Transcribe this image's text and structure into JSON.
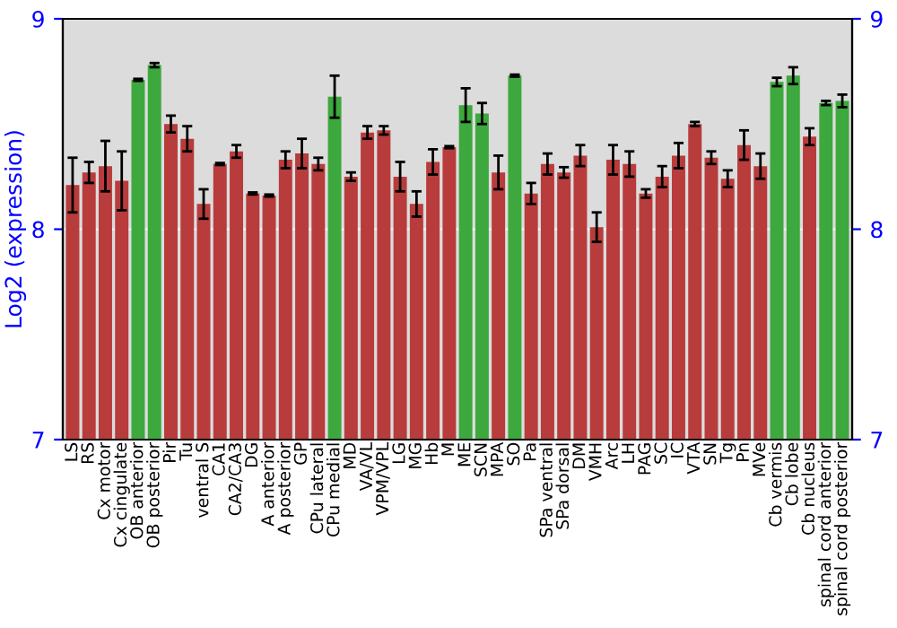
{
  "chart_data": {
    "type": "bar",
    "ylabel": "Log2 (expression)",
    "categories": [
      "LS",
      "RS",
      "Cx motor",
      "Cx cingulate",
      "OB anterior",
      "OB posterior",
      "Pir",
      "Tu",
      "ventral S",
      "CA1",
      "CA2/CA3",
      "DG",
      "A anterior",
      "A posterior",
      "GP",
      "CPu lateral",
      "CPu medial",
      "MD",
      "VA/VL",
      "VPM/VPL",
      "LG",
      "MG",
      "Hb",
      "M",
      "ME",
      "SCN",
      "MPA",
      "SO",
      "Pa",
      "SPa ventral",
      "SPa dorsal",
      "DM",
      "VMH",
      "Arc",
      "LH",
      "PAG",
      "SC",
      "IC",
      "VTA",
      "SN",
      "Tg",
      "Pn",
      "MVe",
      "Cb vermis",
      "Cb lobe",
      "Cb nucleus",
      "spinal cord anterior",
      "spinal cord posterior"
    ],
    "values": [
      8.21,
      8.27,
      8.3,
      8.23,
      8.71,
      8.78,
      8.5,
      8.43,
      8.12,
      8.31,
      8.37,
      8.17,
      8.16,
      8.33,
      8.36,
      8.31,
      8.63,
      8.25,
      8.46,
      8.47,
      8.25,
      8.12,
      8.32,
      8.39,
      8.59,
      8.55,
      8.27,
      8.73,
      8.17,
      8.31,
      8.27,
      8.35,
      8.01,
      8.33,
      8.31,
      8.17,
      8.25,
      8.35,
      8.5,
      8.34,
      8.24,
      8.4,
      8.3,
      8.7,
      8.73,
      8.44,
      8.6,
      8.61
    ],
    "errors": [
      0.13,
      0.05,
      0.12,
      0.14,
      0.005,
      0.01,
      0.04,
      0.06,
      0.07,
      0.005,
      0.03,
      0.005,
      0.005,
      0.04,
      0.07,
      0.03,
      0.1,
      0.02,
      0.03,
      0.02,
      0.07,
      0.06,
      0.06,
      0.005,
      0.08,
      0.05,
      0.08,
      0.005,
      0.05,
      0.05,
      0.025,
      0.05,
      0.07,
      0.07,
      0.06,
      0.02,
      0.05,
      0.06,
      0.01,
      0.03,
      0.04,
      0.07,
      0.06,
      0.02,
      0.04,
      0.04,
      0.01,
      0.03
    ],
    "colors": [
      "#b83c3c",
      "#b83c3c",
      "#b83c3c",
      "#b83c3c",
      "#3da83d",
      "#3da83d",
      "#b83c3c",
      "#b83c3c",
      "#b83c3c",
      "#b83c3c",
      "#b83c3c",
      "#b83c3c",
      "#b83c3c",
      "#b83c3c",
      "#b83c3c",
      "#b83c3c",
      "#3da83d",
      "#b83c3c",
      "#b83c3c",
      "#b83c3c",
      "#b83c3c",
      "#b83c3c",
      "#b83c3c",
      "#b83c3c",
      "#3da83d",
      "#3da83d",
      "#b83c3c",
      "#3da83d",
      "#b83c3c",
      "#b83c3c",
      "#b83c3c",
      "#b83c3c",
      "#b83c3c",
      "#b83c3c",
      "#b83c3c",
      "#b83c3c",
      "#b83c3c",
      "#b83c3c",
      "#b83c3c",
      "#b83c3c",
      "#b83c3c",
      "#b83c3c",
      "#b83c3c",
      "#3da83d",
      "#3da83d",
      "#b83c3c",
      "#3da83d",
      "#3da83d"
    ],
    "ylim": [
      7,
      9
    ],
    "yticks": [
      7,
      8,
      9
    ],
    "y2lim": [
      7,
      9
    ],
    "y2ticks": [
      7,
      8,
      9
    ],
    "grid": "y"
  }
}
